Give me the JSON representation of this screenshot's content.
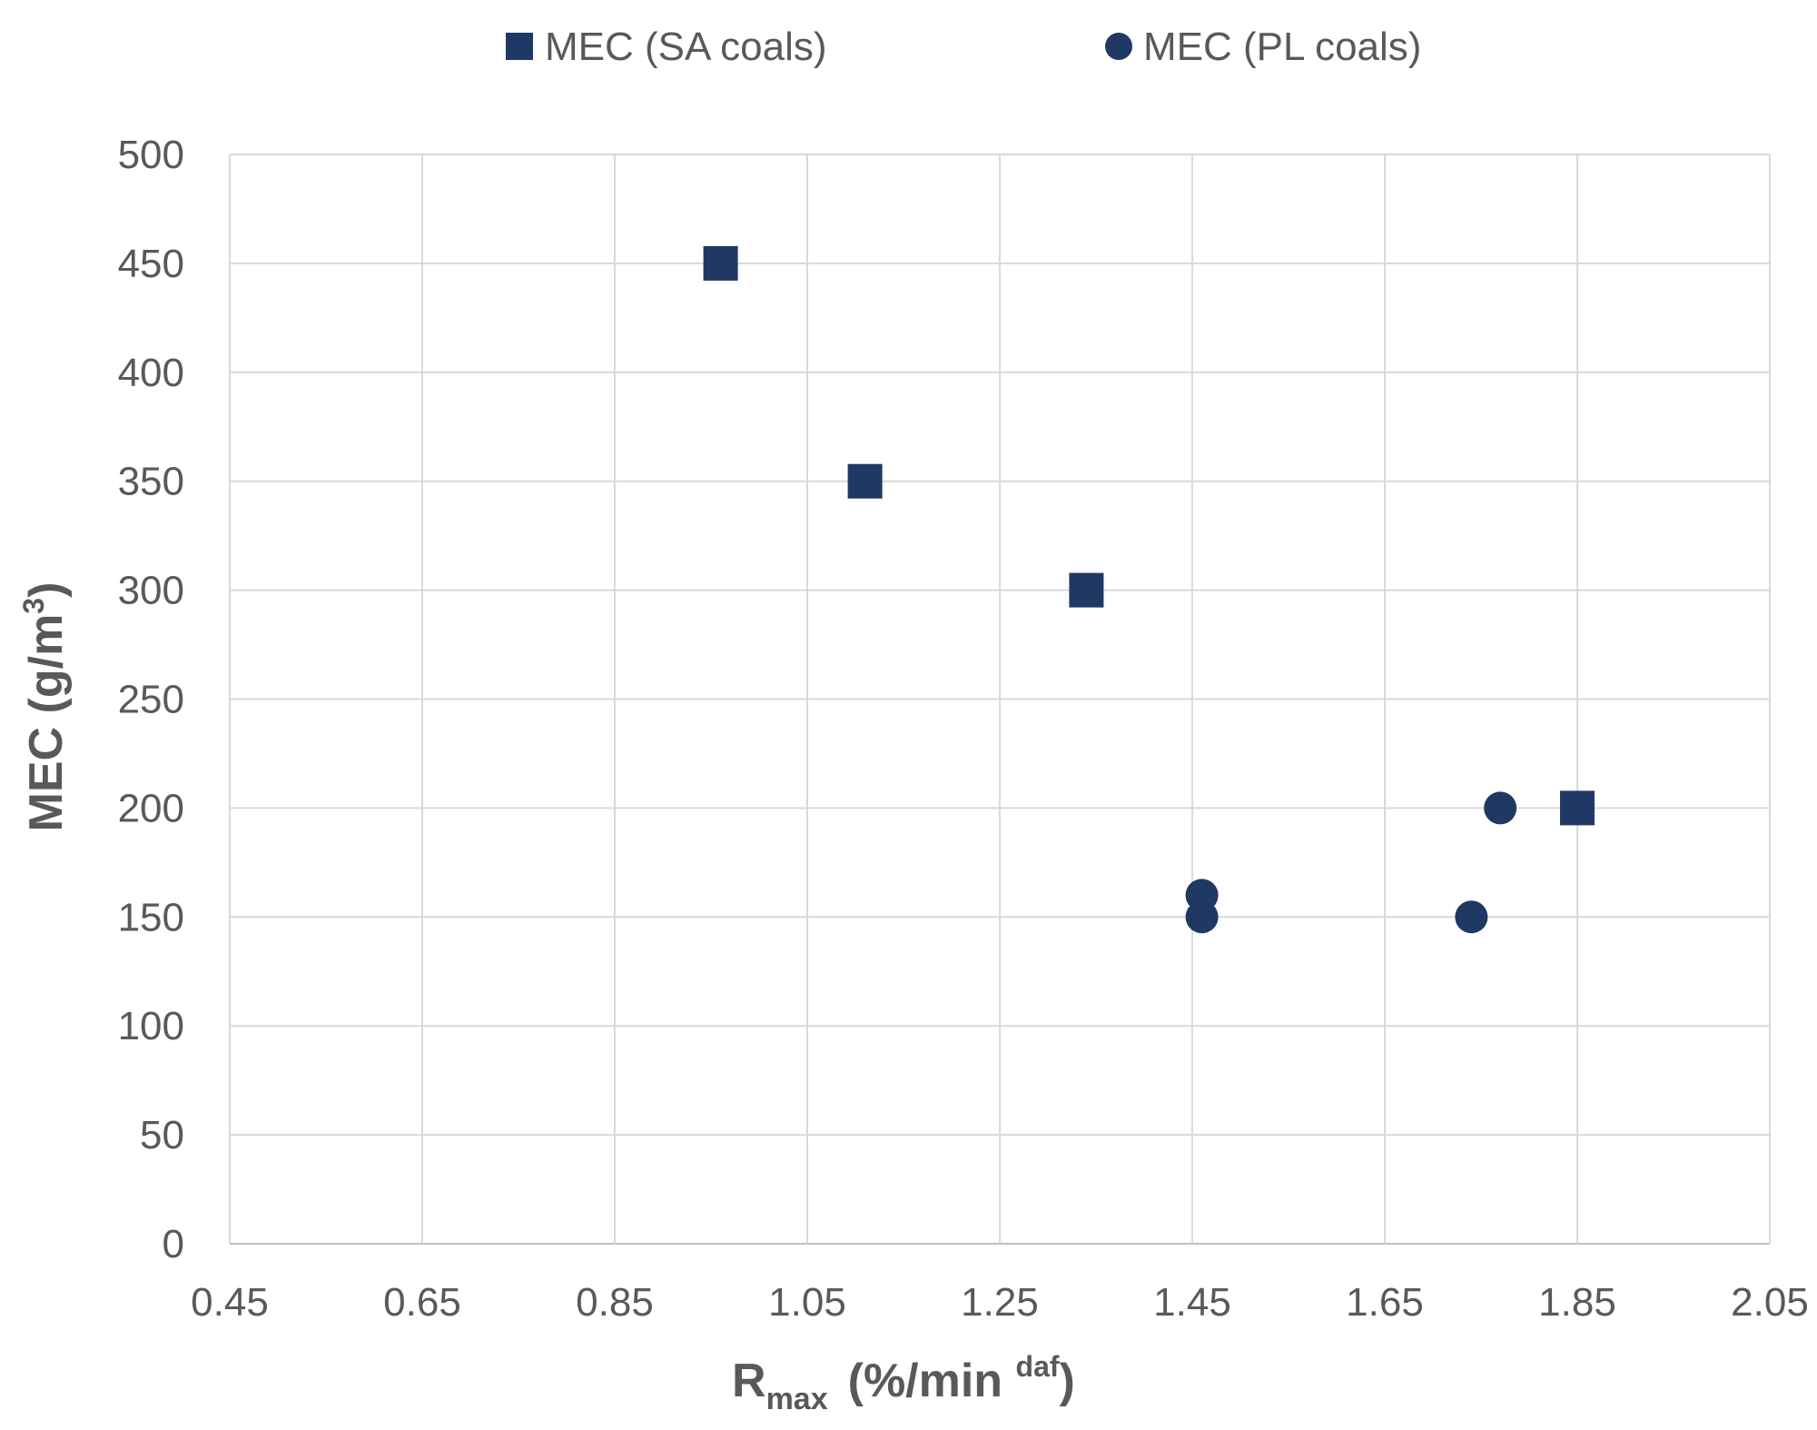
{
  "chart_data": {
    "type": "scatter",
    "title": "",
    "xlabel": {
      "main": "R",
      "sub": "max",
      "rest": "(%/min ",
      "sup": "daf",
      "close": ")"
    },
    "ylabel": {
      "main": "MEC (g/m",
      "sup": "3",
      "close": ")"
    },
    "xlim": [
      0.45,
      2.05
    ],
    "ylim": [
      0,
      500
    ],
    "xticks": [
      "0.45",
      "0.65",
      "0.85",
      "1.05",
      "1.25",
      "1.45",
      "1.65",
      "1.85",
      "2.05"
    ],
    "yticks": [
      "0",
      "50",
      "100",
      "150",
      "200",
      "250",
      "300",
      "350",
      "400",
      "450",
      "500"
    ],
    "xtick_values": [
      0.45,
      0.65,
      0.85,
      1.05,
      1.25,
      1.45,
      1.65,
      1.85,
      2.05
    ],
    "ytick_values": [
      0,
      50,
      100,
      150,
      200,
      250,
      300,
      350,
      400,
      450,
      500
    ],
    "grid": true,
    "legend_position": "top-center",
    "series": [
      {
        "name": "MEC (SA coals)",
        "marker": "square",
        "color": "#1f3864",
        "points": [
          {
            "x": 0.96,
            "y": 450
          },
          {
            "x": 1.11,
            "y": 350
          },
          {
            "x": 1.34,
            "y": 300
          },
          {
            "x": 1.85,
            "y": 200
          }
        ]
      },
      {
        "name": "MEC (PL coals)",
        "marker": "circle",
        "color": "#1f3864",
        "points": [
          {
            "x": 1.46,
            "y": 160
          },
          {
            "x": 1.46,
            "y": 150
          },
          {
            "x": 1.74,
            "y": 150
          },
          {
            "x": 1.77,
            "y": 200
          }
        ]
      }
    ]
  }
}
